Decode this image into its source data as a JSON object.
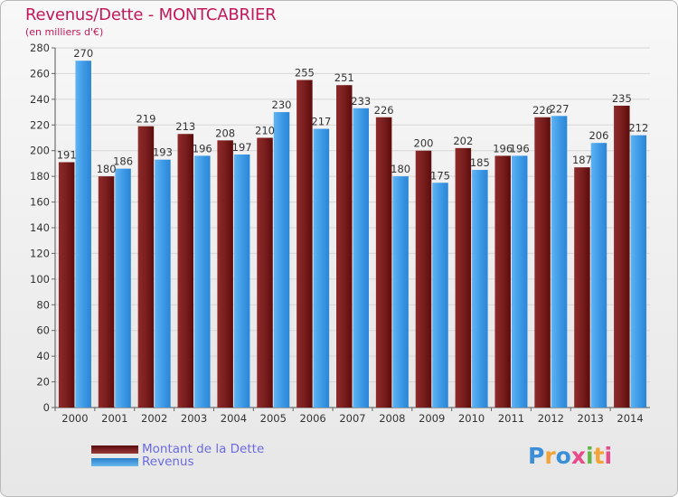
{
  "chart_data": {
    "type": "bar",
    "title": "Revenus/Dette - MONTCABRIER",
    "subtitle": "(en milliers d'€)",
    "categories": [
      "2000",
      "2001",
      "2002",
      "2003",
      "2004",
      "2005",
      "2006",
      "2007",
      "2008",
      "2009",
      "2010",
      "2011",
      "2012",
      "2013",
      "2014"
    ],
    "series": [
      {
        "name": "Montant de la Dette",
        "color": "#7a1e1e",
        "values": [
          191,
          180,
          219,
          213,
          208,
          210,
          255,
          251,
          226,
          200,
          202,
          196,
          226,
          187,
          235
        ]
      },
      {
        "name": "Revenus",
        "color": "#3f9be6",
        "values": [
          270,
          186,
          193,
          196,
          197,
          230,
          217,
          233,
          180,
          175,
          185,
          196,
          227,
          206,
          212
        ]
      }
    ],
    "ylim": [
      0,
      280
    ],
    "yticks": [
      0,
      20,
      40,
      60,
      80,
      100,
      120,
      140,
      160,
      180,
      200,
      220,
      240,
      260,
      280
    ],
    "grid": true,
    "legend_position": "bottom-left"
  },
  "logo": {
    "text": "Proxiti",
    "colors": [
      "#3a8fd8",
      "#f2a33a",
      "#3a8fd8",
      "#e84a8a",
      "#62b548",
      "#f2a33a",
      "#e84a8a"
    ]
  }
}
